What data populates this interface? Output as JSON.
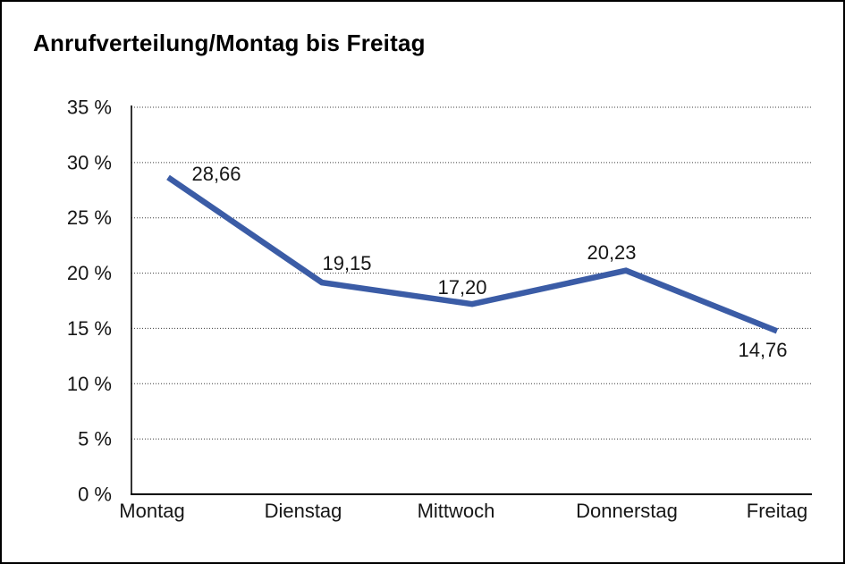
{
  "chart_data": {
    "type": "line",
    "title": "Anrufverteilung/Montag bis Freitag",
    "categories": [
      "Montag",
      "Dienstag",
      "Mittwoch",
      "Donnerstag",
      "Freitag"
    ],
    "values": [
      28.66,
      19.15,
      17.2,
      20.23,
      14.76
    ],
    "value_labels": [
      "28,66",
      "19,15",
      "17,20",
      "20,23",
      "14,76"
    ],
    "xlabel": "",
    "ylabel": "",
    "ylim": [
      0,
      35
    ],
    "ytick_values": [
      35,
      30,
      25,
      20,
      15,
      10,
      5,
      0
    ],
    "ytick_labels": [
      "35 %",
      "30 %",
      "25 %",
      "20 %",
      "15 %",
      "10 %",
      "5 %",
      "0 %"
    ],
    "grid": "horizontal-dotted",
    "legend_position": "none",
    "line_color": "#3b5ca6"
  }
}
